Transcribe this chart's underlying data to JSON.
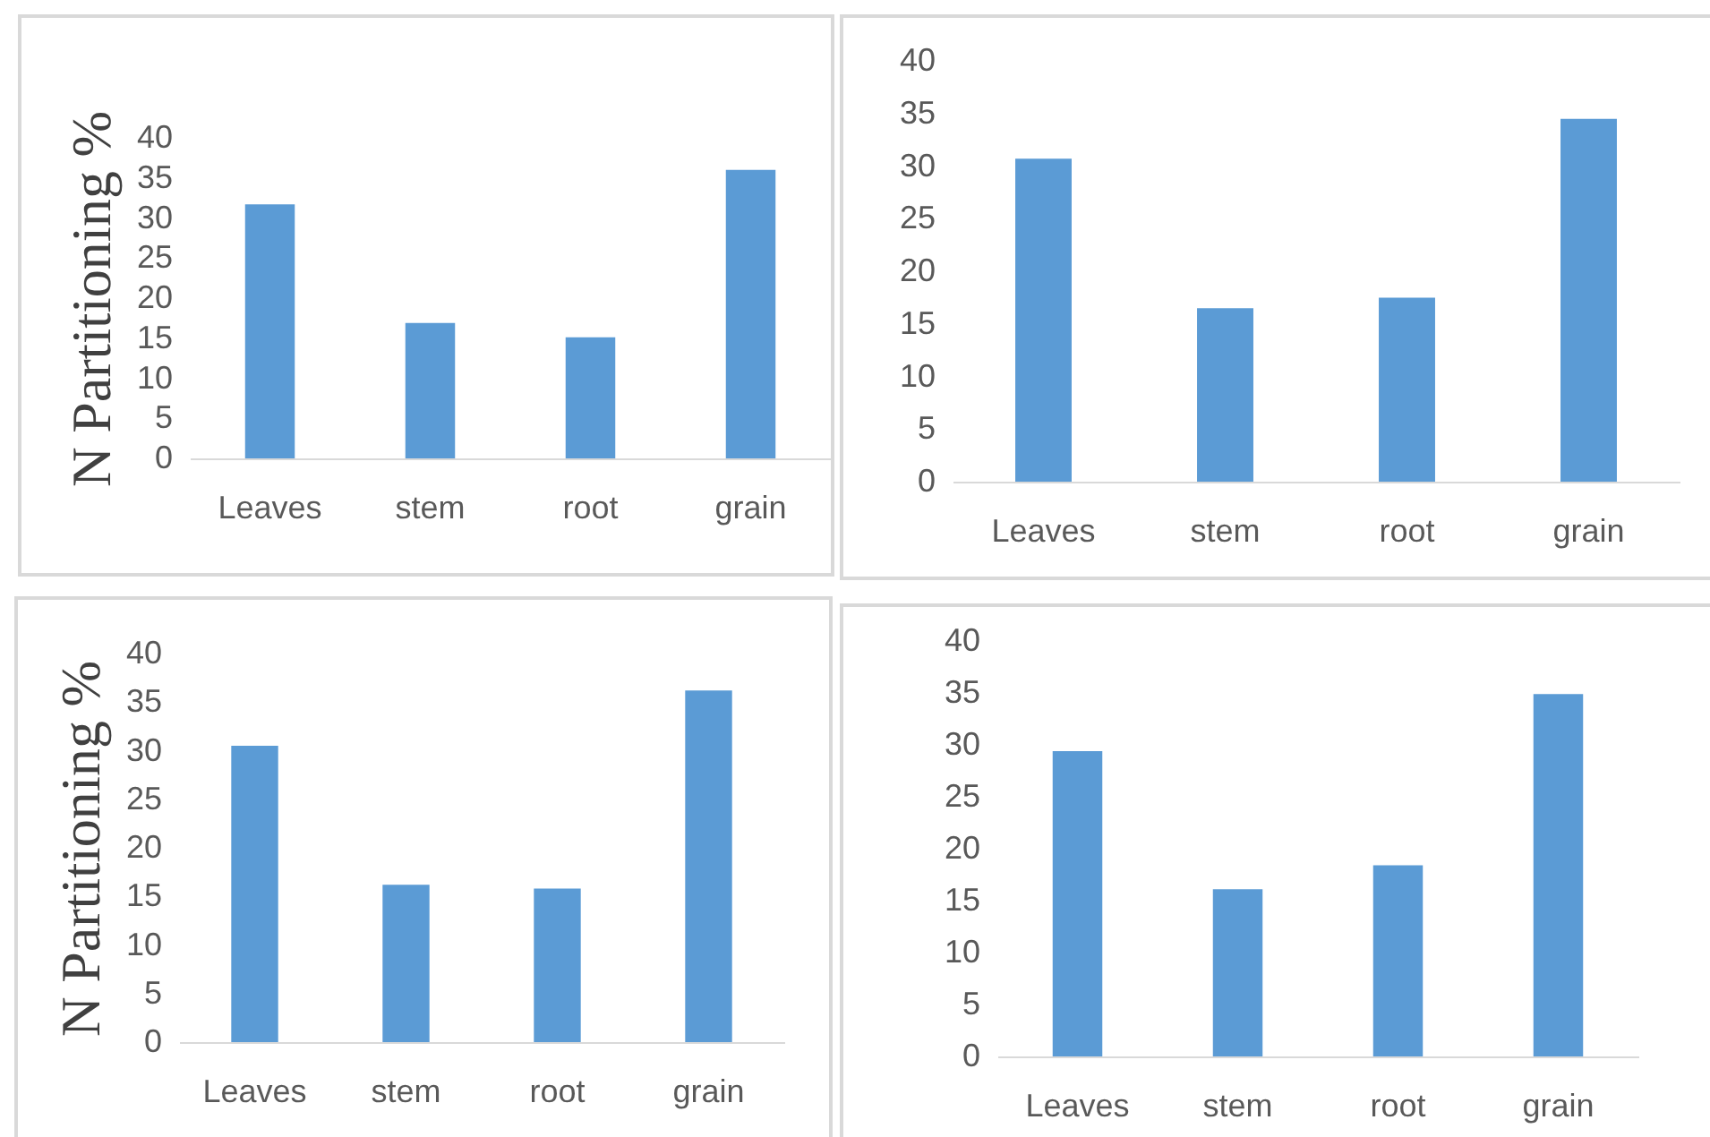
{
  "chart_data": [
    {
      "type": "bar",
      "ylabel": "N Partitioning %",
      "categories": [
        "Leaves",
        "stem",
        "root",
        "grain"
      ],
      "values": [
        31.7,
        16.9,
        15.1,
        36.0
      ],
      "color": "#5b9bd5",
      "ylim": [
        0,
        40
      ],
      "yticks": [
        0,
        5,
        10,
        15,
        20,
        25,
        30,
        35,
        40
      ]
    },
    {
      "type": "bar",
      "categories": [
        "Leaves",
        "stem",
        "root",
        "grain"
      ],
      "values": [
        30.7,
        16.5,
        17.5,
        34.5
      ],
      "color": "#5b9bd5",
      "ylim": [
        0,
        40
      ],
      "yticks": [
        0,
        5,
        10,
        15,
        20,
        25,
        30,
        35,
        40
      ]
    },
    {
      "type": "bar",
      "ylabel": "N Partitioning %",
      "categories": [
        "Leaves",
        "stem",
        "root",
        "grain"
      ],
      "values": [
        30.5,
        16.2,
        15.8,
        36.2
      ],
      "color": "#5b9bd5",
      "ylim": [
        0,
        40
      ],
      "yticks": [
        0,
        5,
        10,
        15,
        20,
        25,
        30,
        35,
        40
      ]
    },
    {
      "type": "bar",
      "categories": [
        "Leaves",
        "stem",
        "root",
        "grain"
      ],
      "values": [
        29.4,
        16.1,
        18.4,
        34.9
      ],
      "color": "#5b9bd5",
      "ylim": [
        0,
        40
      ],
      "yticks": [
        0,
        5,
        10,
        15,
        20,
        25,
        30,
        35,
        40
      ]
    }
  ]
}
